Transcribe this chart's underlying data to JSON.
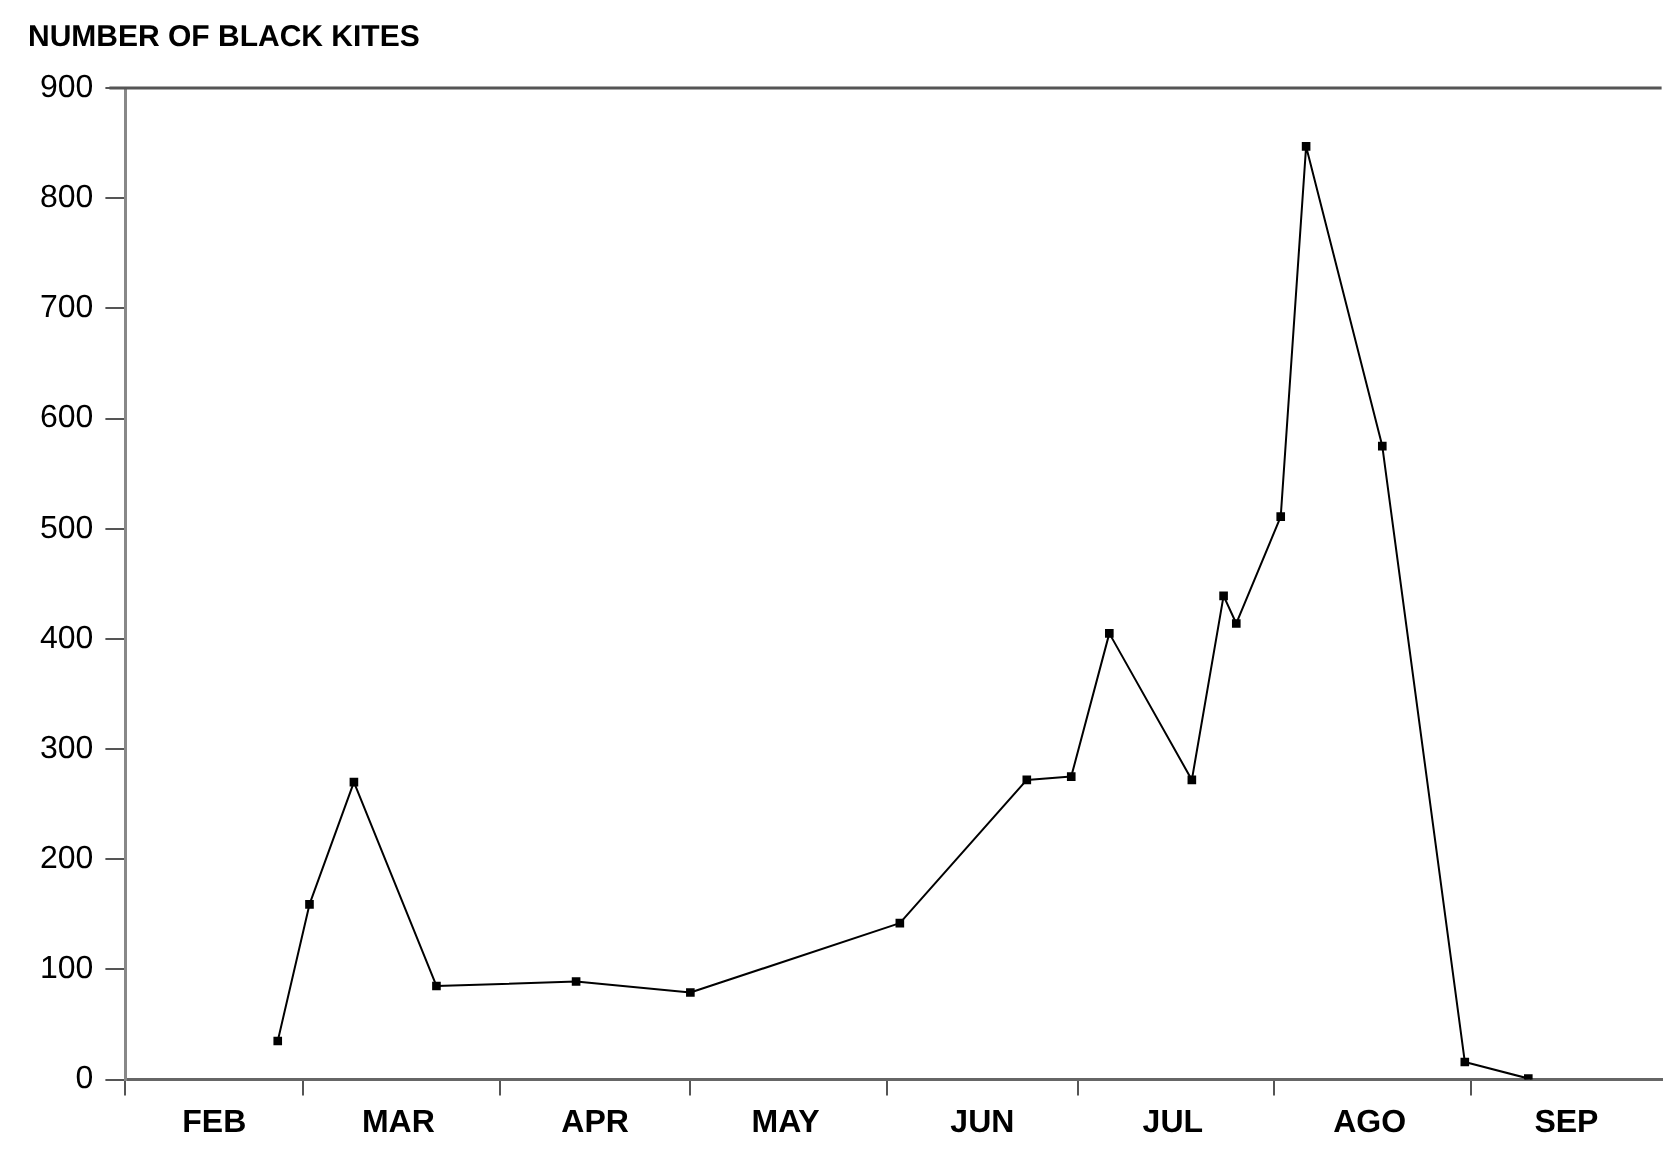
{
  "chart_data": {
    "type": "line",
    "title": "NUMBER OF BLACK KITES",
    "x": [
      "--02-25",
      "--03-02",
      "--03-09",
      "--03-22",
      "--04-13",
      "--05-01",
      "--06-03",
      "--06-23",
      "--06-30",
      "--07-06",
      "--07-19",
      "--07-24",
      "--07-26",
      "--08-02",
      "--08-06",
      "--08-18",
      "--08-31",
      "--09-10"
    ],
    "series": [
      {
        "color": "#000000",
        "values": [
          35,
          159,
          270,
          85,
          89,
          79,
          142,
          272,
          275,
          405,
          272,
          439,
          414,
          511,
          847,
          575,
          16,
          1
        ]
      }
    ],
    "xlim": [
      "--02-01",
      "--10-01"
    ],
    "xticks": [
      {
        "value": "--02-01",
        "label": null
      },
      {
        "value": "--02-15",
        "label": "FEB"
      },
      {
        "value": "--03-01",
        "label": null
      },
      {
        "value": "--03-16",
        "label": "MAR"
      },
      {
        "value": "--04-01",
        "label": null
      },
      {
        "value": "--04-16",
        "label": "APR"
      },
      {
        "value": "--05-01",
        "label": null
      },
      {
        "value": "--05-16",
        "label": "MAY"
      },
      {
        "value": "--06-01",
        "label": null
      },
      {
        "value": "--06-16",
        "label": "JUN"
      },
      {
        "value": "--07-01",
        "label": null
      },
      {
        "value": "--07-16",
        "label": "JUL"
      },
      {
        "value": "--08-01",
        "label": null
      },
      {
        "value": "--08-16",
        "label": "AGO"
      },
      {
        "value": "--09-01",
        "label": null
      },
      {
        "value": "--09-16",
        "label": "SEP"
      }
    ],
    "ylim": [
      0,
      900
    ],
    "yticks": [
      0,
      100,
      200,
      300,
      400,
      500,
      600,
      700,
      800,
      900
    ],
    "grid": false,
    "legend": false,
    "marker": "square",
    "line_style": "solid"
  }
}
